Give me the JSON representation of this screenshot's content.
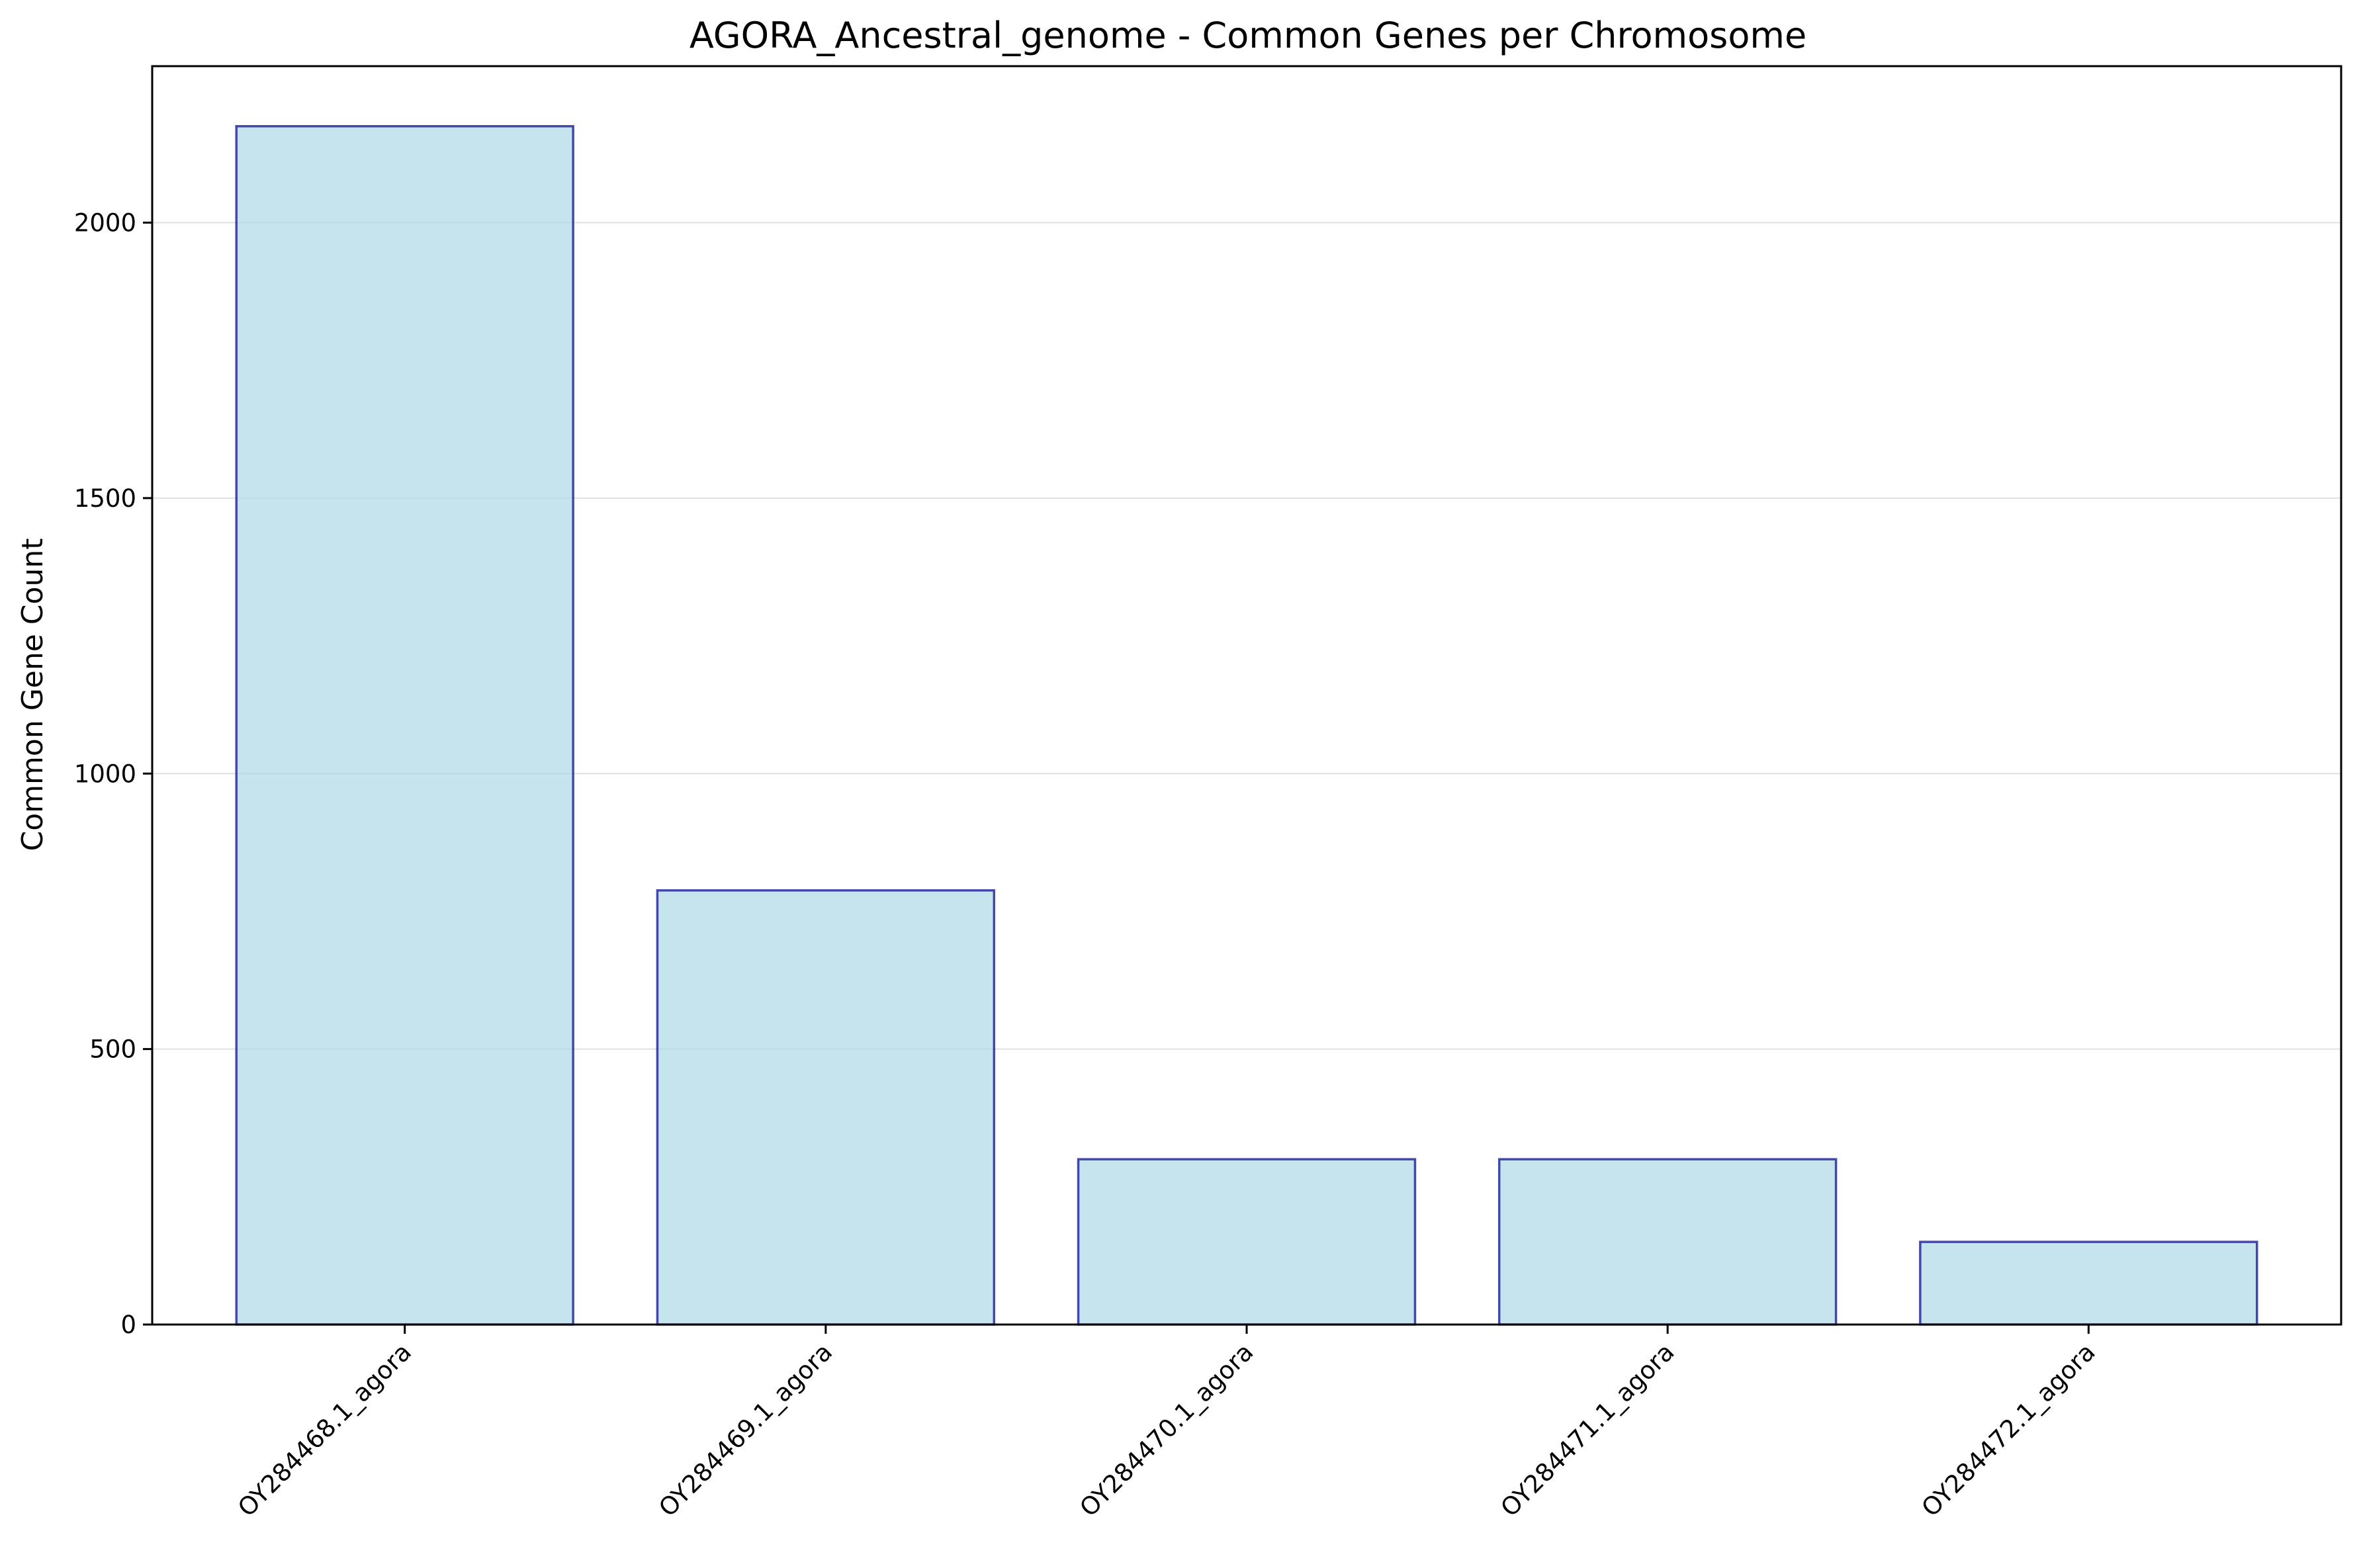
{
  "chart_data": {
    "type": "bar",
    "title": "AGORA_Ancestral_genome - Common Genes per Chromosome",
    "xlabel": "",
    "ylabel": "Common Gene Count",
    "categories": [
      "OY284468.1_agora",
      "OY284469.1_agora",
      "OY284470.1_agora",
      "OY284471.1_agora",
      "OY284472.1_agora"
    ],
    "values": [
      2175,
      788,
      300,
      300,
      150
    ],
    "ylim": [
      0,
      2284
    ],
    "yticks": [
      0,
      500,
      1000,
      1500,
      2000
    ],
    "ytick_labels": [
      "0",
      "500",
      "1000",
      "1500",
      "2000"
    ],
    "grid": "horizontal",
    "legend": "none",
    "colors": {
      "bar_fill": "#add8e6",
      "bar_fill_opacity": 0.7,
      "bar_edge": "#00008b",
      "grid": "#e0e0e0",
      "axes": "#000000"
    }
  }
}
